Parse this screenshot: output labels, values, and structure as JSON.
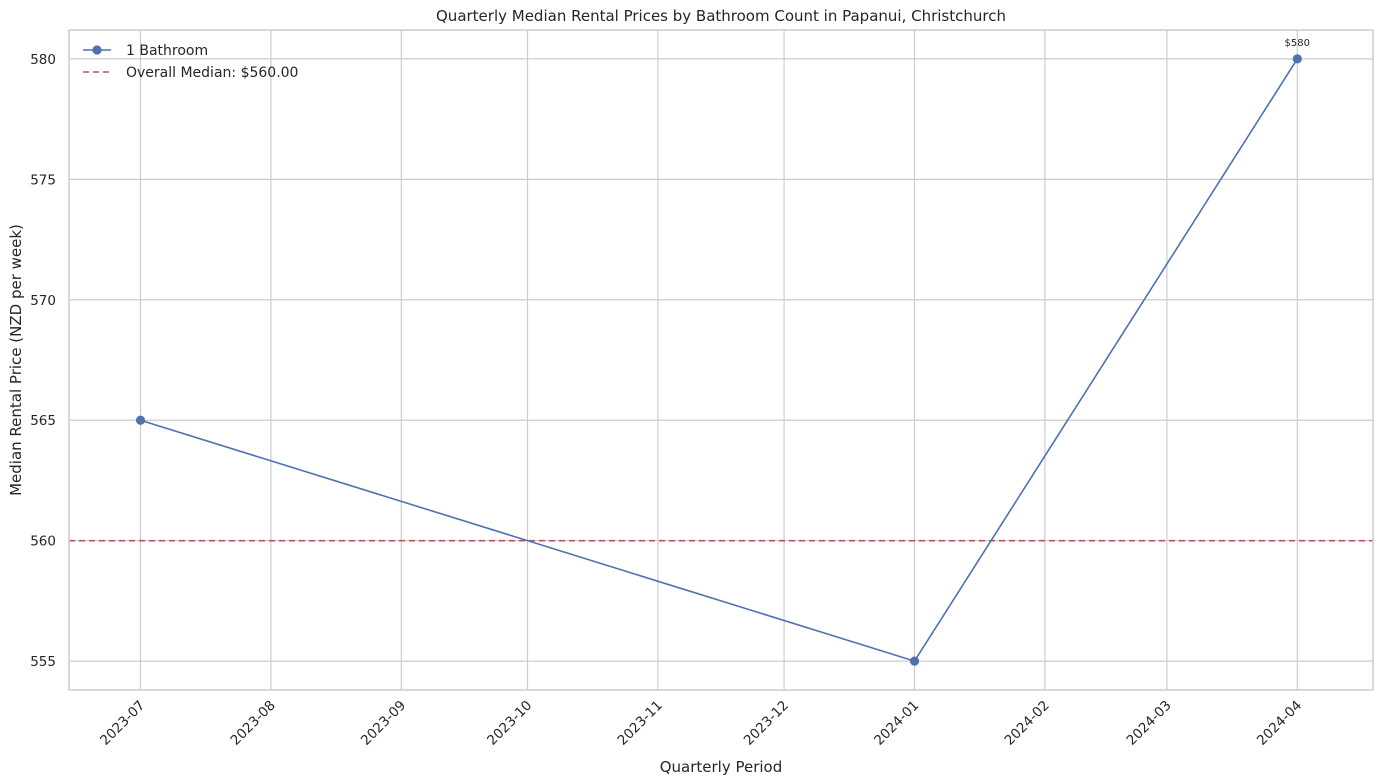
{
  "chart_data": {
    "type": "line",
    "title": "Quarterly Median Rental Prices by Bathroom Count in Papanui, Christchurch",
    "xlabel": "Quarterly Period",
    "ylabel": "Median Rental Price (NZD per week)",
    "x_ticks": [
      "2023-07",
      "2023-08",
      "2023-09",
      "2023-10",
      "2023-11",
      "2023-12",
      "2024-01",
      "2024-02",
      "2024-03",
      "2024-04"
    ],
    "y_ticks": [
      555,
      560,
      565,
      570,
      575,
      580
    ],
    "xlim": [
      "2023-06-14",
      "2024-04-19"
    ],
    "ylim": [
      553.8,
      581.2
    ],
    "grid": true,
    "legend_position": "top-left",
    "series": [
      {
        "name": "1 Bathroom",
        "color": "#4c72b0",
        "marker": "circle",
        "x": [
          "2023-07-01",
          "2024-01-01",
          "2024-04-01"
        ],
        "y": [
          565,
          555,
          580
        ],
        "labels": [
          "",
          "",
          "$580"
        ]
      }
    ],
    "reference_lines": [
      {
        "label": "Overall Median: $560.00",
        "y": 560,
        "color": "#c44e52",
        "style": "dashed"
      }
    ]
  }
}
